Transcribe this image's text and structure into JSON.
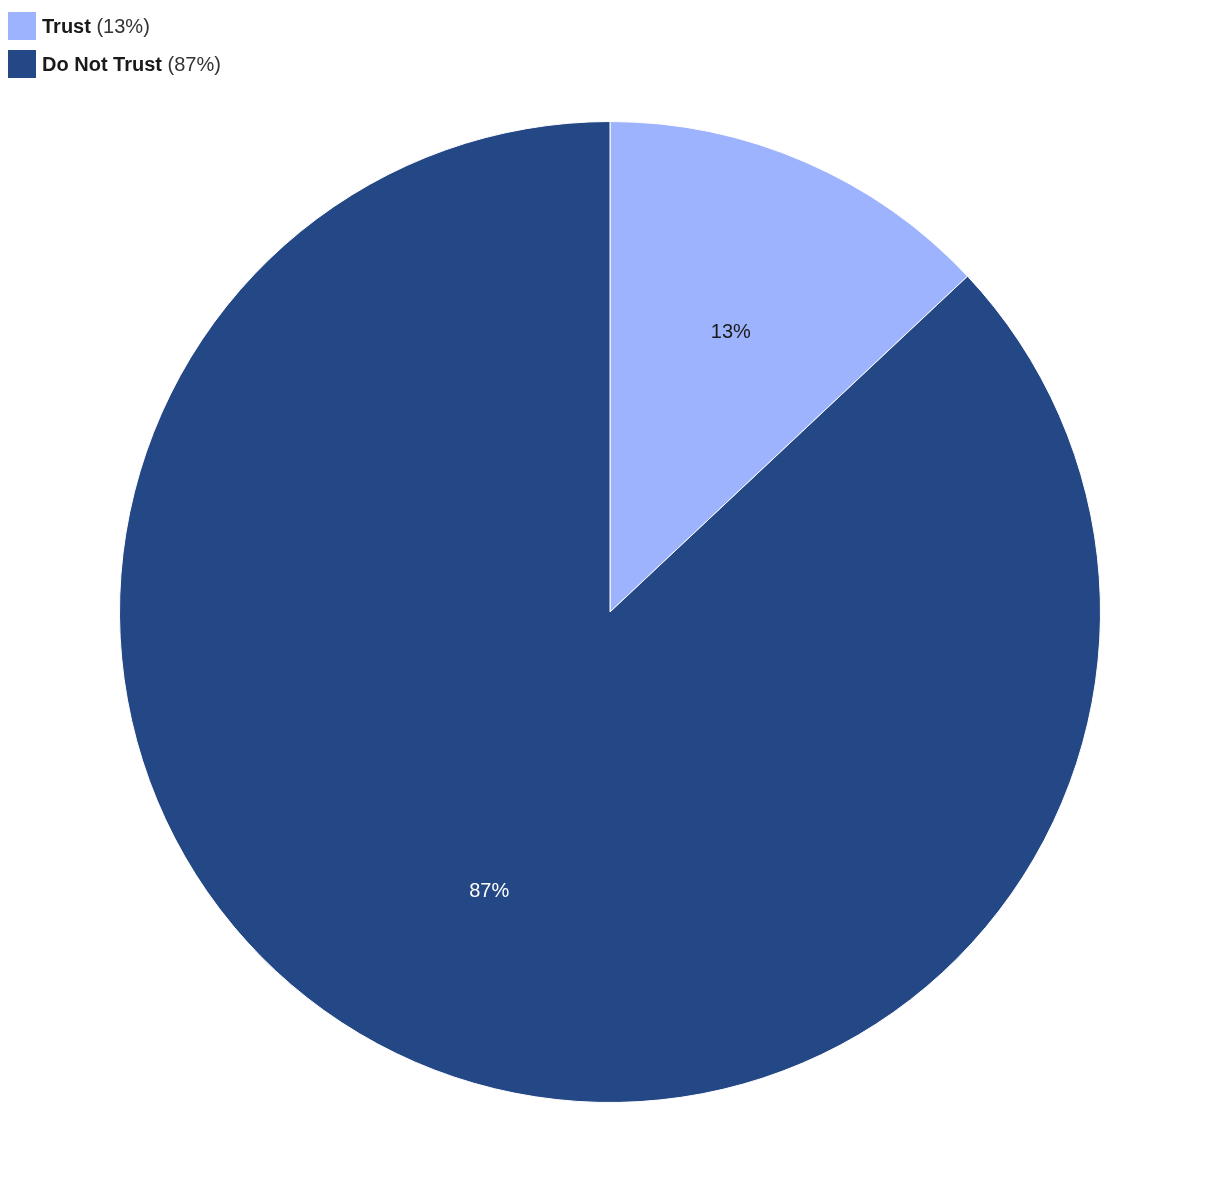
{
  "chart_data": {
    "type": "pie",
    "categories": [
      "Trust (13%)",
      "Do Not Trust (87%)"
    ],
    "values": [
      13,
      87
    ],
    "colors": [
      "#9db3fd",
      "#244786"
    ],
    "value_labels": [
      "13%",
      "87%"
    ],
    "legend": "top left"
  }
}
